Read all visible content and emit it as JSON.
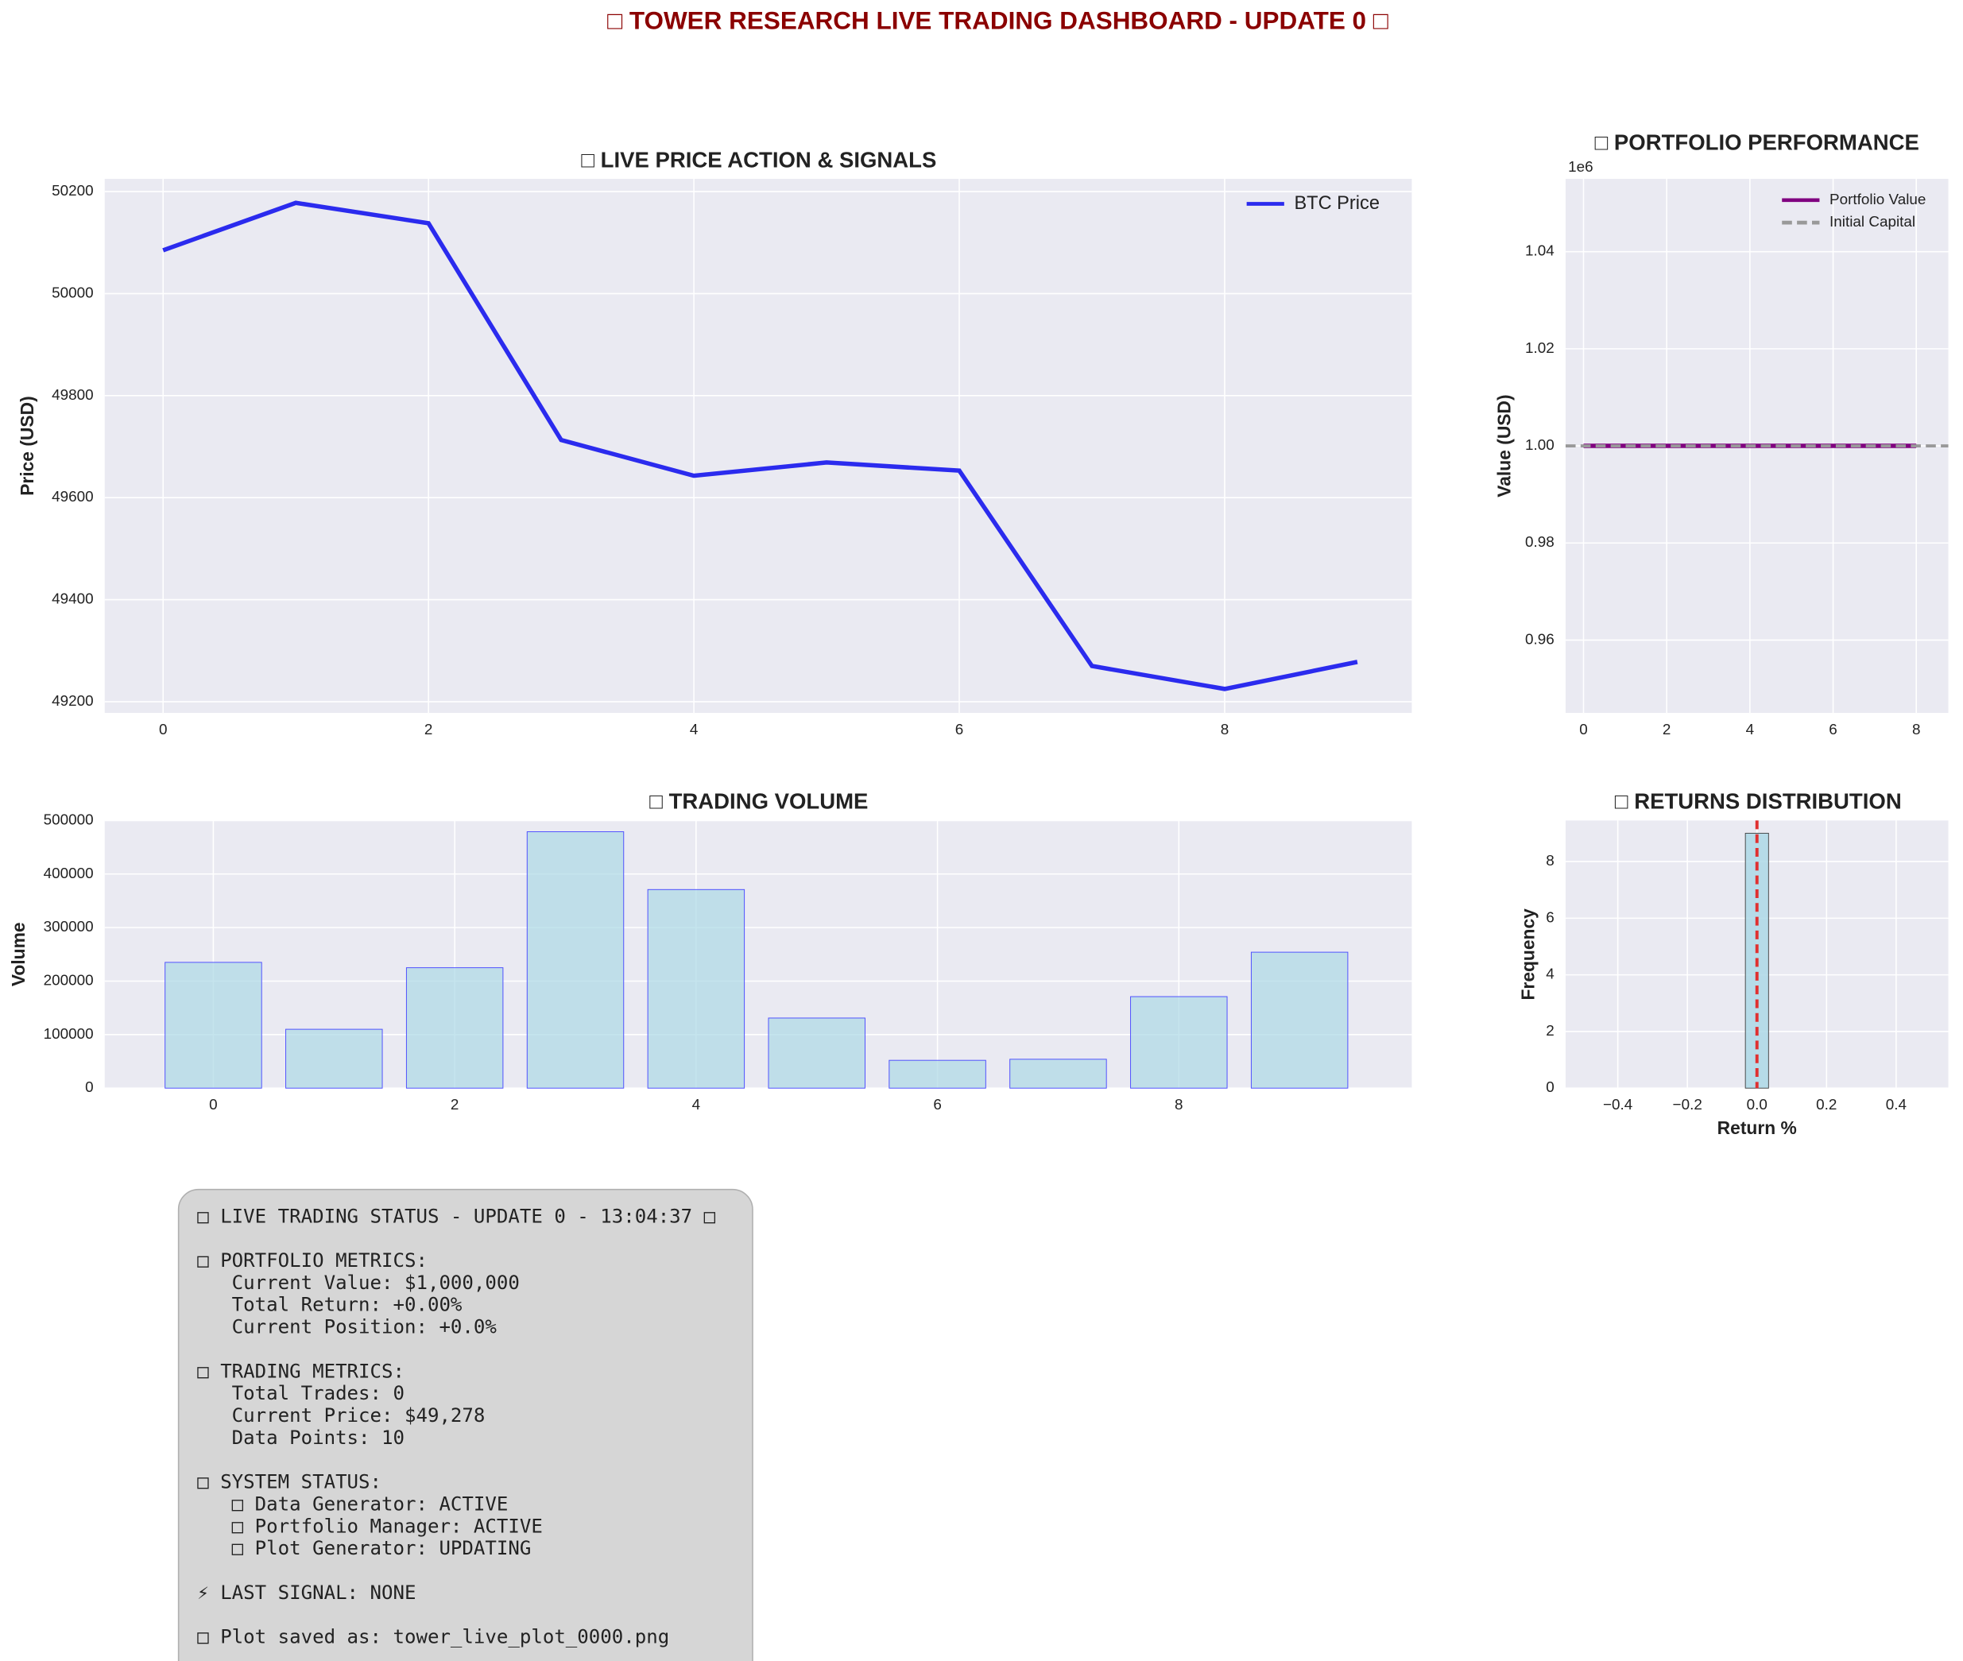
{
  "title": "□ TOWER RESEARCH LIVE TRADING DASHBOARD - UPDATE 0 □",
  "chart_data": [
    {
      "type": "line",
      "title": "□ LIVE PRICE ACTION & SIGNALS",
      "y_label": "Price (USD)",
      "x": [
        0,
        1,
        2,
        3,
        4,
        5,
        6,
        7,
        8,
        9
      ],
      "series": [
        {
          "name": "BTC Price",
          "color": "#2b2bee",
          "values": [
            50085,
            50178,
            50138,
            49713,
            49643,
            49669,
            49653,
            49270,
            49225,
            49278
          ]
        }
      ],
      "xlim": [
        -0.44,
        9.41
      ],
      "xticks": [
        0,
        2,
        4,
        6,
        8
      ],
      "ylim": [
        49178,
        50225
      ],
      "yticks": [
        49200,
        49400,
        49600,
        49800,
        50000,
        50200
      ],
      "grid": true,
      "legend": "upper right"
    },
    {
      "type": "line",
      "title": "□ PORTFOLIO PERFORMANCE",
      "y_label": "Value (USD)",
      "y_offset": "1e6",
      "x": [
        0,
        1,
        2,
        3,
        4,
        5,
        6,
        7,
        8
      ],
      "series": [
        {
          "name": "Portfolio Value",
          "color": "#800080",
          "values": [
            1000000,
            1000000,
            1000000,
            1000000,
            1000000,
            1000000,
            1000000,
            1000000,
            1000000
          ]
        },
        {
          "name": "Initial Capital",
          "color": "#999999",
          "linestyle": "dashed",
          "hline": 1000000
        }
      ],
      "xlim": [
        -0.43,
        8.77
      ],
      "xticks": [
        0,
        2,
        4,
        6,
        8
      ],
      "ylim": [
        945000,
        1055000
      ],
      "yticks": [
        {
          "value": 960000,
          "label": "0.96"
        },
        {
          "value": 980000,
          "label": "0.98"
        },
        {
          "value": 1000000,
          "label": "1.00"
        },
        {
          "value": 1020000,
          "label": "1.02"
        },
        {
          "value": 1040000,
          "label": "1.04"
        }
      ],
      "grid": true,
      "legend": "upper right"
    },
    {
      "type": "bar",
      "title": "□ TRADING VOLUME",
      "y_label": "Volume",
      "x": [
        0,
        1,
        2,
        3,
        4,
        5,
        6,
        7,
        8,
        9
      ],
      "values": [
        235000,
        110000,
        225000,
        479000,
        371000,
        131000,
        52000,
        54000,
        171000,
        254000
      ],
      "color": "#add8e6",
      "edgecolor": "#4a4aff",
      "xlim": [
        -0.9,
        9.93
      ],
      "xticks": [
        0,
        2,
        4,
        6,
        8
      ],
      "ylim": [
        0,
        500000
      ],
      "yticks": [
        0,
        100000,
        200000,
        300000,
        400000,
        500000
      ],
      "grid": true
    },
    {
      "type": "histogram",
      "title": "□ RETURNS DISTRIBUTION",
      "x_label": "Return %",
      "y_label": "Frequency",
      "bins": [
        -0.5,
        -0.4333,
        -0.3667,
        -0.3,
        -0.2333,
        -0.1667,
        -0.1,
        -0.0333,
        0.0333,
        0.1,
        0.1667,
        0.2333,
        0.3,
        0.3667,
        0.4333,
        0.5
      ],
      "counts": [
        0,
        0,
        0,
        0,
        0,
        0,
        0,
        9,
        0,
        0,
        0,
        0,
        0,
        0,
        0
      ],
      "color": "#add8e6",
      "edgecolor": "#444444",
      "vline": {
        "value": 0,
        "color": "#e03030",
        "linestyle": "dashed"
      },
      "xlim": [
        -0.55,
        0.55
      ],
      "xticks": [
        {
          "value": -0.4,
          "label": "−0.4"
        },
        {
          "value": -0.2,
          "label": "−0.2"
        },
        {
          "value": 0,
          "label": "0.0"
        },
        0.2,
        0.4
      ],
      "ylim": [
        0,
        9.45
      ],
      "yticks": [
        0,
        2,
        4,
        6,
        8
      ],
      "grid": true
    }
  ],
  "status": {
    "blocks": [
      [
        "□ LIVE TRADING STATUS - UPDATE 0 - 13:04:37 □"
      ],
      [
        "□ PORTFOLIO METRICS:",
        "   Current Value: $1,000,000",
        "   Total Return: +0.00%",
        "   Current Position: +0.0%"
      ],
      [
        "□ TRADING METRICS:",
        "   Total Trades: 0",
        "   Current Price: $49,278",
        "   Data Points: 10"
      ],
      [
        "□ SYSTEM STATUS:",
        "   □ Data Generator: ACTIVE",
        "   □ Portfolio Manager: ACTIVE",
        "   □ Plot Generator: UPDATING"
      ],
      [
        "⚡ LAST SIGNAL: NONE"
      ],
      [
        "□ Plot saved as: tower_live_plot_0000.png"
      ]
    ]
  }
}
